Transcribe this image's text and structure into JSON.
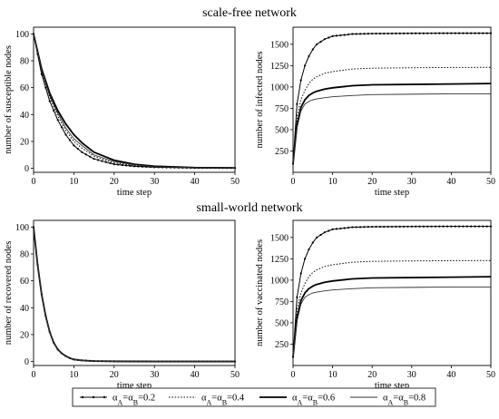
{
  "sections": {
    "top": "scale-free  network",
    "bottom": "small-world  network"
  },
  "legend": [
    {
      "label": "α",
      "sub1": "A",
      "mid": "=α",
      "sub2": "B",
      "tail": "=0.2",
      "style": "marker"
    },
    {
      "label": "α",
      "sub1": "A",
      "mid": "=α",
      "sub2": "B",
      "tail": "=0.4",
      "style": "dotted"
    },
    {
      "label": "α",
      "sub1": "A",
      "mid": "=α",
      "sub2": "B",
      "tail": "=0.6",
      "style": "thick"
    },
    {
      "label": "α",
      "sub1": "A",
      "mid": "=α",
      "sub2": "B",
      "tail": "=0.8",
      "style": "thin"
    }
  ],
  "chart_data": [
    {
      "type": "line",
      "title": "",
      "xlabel": "time step",
      "ylabel": "number of susceptible nodes",
      "xlim": [
        0,
        50
      ],
      "ylim": [
        -3,
        105
      ],
      "xticks": [
        "0",
        "10",
        "20",
        "30",
        "40",
        "50"
      ],
      "yticks": [
        "0",
        "20",
        "40",
        "60",
        "80",
        "100"
      ],
      "series": [
        {
          "name": "αA=αB=0.2",
          "x": [
            0,
            2,
            4,
            6,
            8,
            10,
            12,
            15,
            20,
            25,
            30,
            40,
            50
          ],
          "y": [
            100,
            70,
            50,
            36,
            25,
            17,
            12,
            7,
            3,
            1.5,
            0.8,
            0.3,
            0.2
          ]
        },
        {
          "name": "αA=αB=0.4",
          "x": [
            0,
            2,
            4,
            6,
            8,
            10,
            12,
            15,
            20,
            25,
            30,
            40,
            50
          ],
          "y": [
            100,
            72,
            53,
            39,
            28,
            20,
            15,
            9,
            4,
            2,
            1,
            0.4,
            0.3
          ]
        },
        {
          "name": "αA=αB=0.6",
          "x": [
            0,
            2,
            4,
            6,
            8,
            10,
            12,
            15,
            20,
            25,
            30,
            40,
            50
          ],
          "y": [
            100,
            74,
            56,
            43,
            33,
            25,
            19,
            12,
            6,
            3,
            1.5,
            0.5,
            0.3
          ]
        },
        {
          "name": "αA=αB=0.8",
          "x": [
            0,
            2,
            4,
            6,
            8,
            10,
            12,
            15,
            20,
            25,
            30,
            40,
            50
          ],
          "y": [
            100,
            73,
            54,
            41,
            30,
            22,
            17,
            10,
            5,
            2.5,
            1.2,
            0.5,
            0.3
          ]
        }
      ]
    },
    {
      "type": "line",
      "title": "",
      "xlabel": "time step",
      "ylabel": "number of infected nodes",
      "xlim": [
        0,
        50
      ],
      "ylim": [
        0,
        1700
      ],
      "xticks": [
        "0",
        "10",
        "20",
        "30",
        "40",
        "50"
      ],
      "yticks": [
        "250",
        "500",
        "750",
        "1000",
        "1250",
        "1500"
      ],
      "series": [
        {
          "name": "αA=αB=0.2",
          "x": [
            0,
            1,
            2,
            3,
            4,
            5,
            6,
            8,
            10,
            15,
            20,
            30,
            40,
            50
          ],
          "y": [
            100,
            800,
            1080,
            1250,
            1360,
            1440,
            1500,
            1560,
            1595,
            1620,
            1625,
            1628,
            1630,
            1630
          ]
        },
        {
          "name": "αA=αB=0.4",
          "x": [
            0,
            1,
            2,
            3,
            4,
            5,
            6,
            8,
            10,
            15,
            20,
            30,
            40,
            50
          ],
          "y": [
            100,
            650,
            850,
            960,
            1040,
            1090,
            1120,
            1160,
            1180,
            1210,
            1220,
            1225,
            1228,
            1230
          ]
        },
        {
          "name": "αA=αB=0.6",
          "x": [
            0,
            1,
            2,
            3,
            4,
            5,
            6,
            8,
            10,
            15,
            20,
            30,
            40,
            50
          ],
          "y": [
            100,
            560,
            760,
            850,
            900,
            930,
            950,
            975,
            990,
            1015,
            1025,
            1030,
            1035,
            1040
          ]
        },
        {
          "name": "αA=αB=0.8",
          "x": [
            0,
            1,
            2,
            3,
            4,
            5,
            6,
            8,
            10,
            15,
            20,
            30,
            40,
            50
          ],
          "y": [
            100,
            520,
            720,
            800,
            830,
            850,
            860,
            875,
            885,
            900,
            910,
            915,
            920,
            920
          ]
        }
      ]
    },
    {
      "type": "line",
      "title": "",
      "xlabel": "time step",
      "ylabel": "number of recovered nodes",
      "xlim": [
        0,
        50
      ],
      "ylim": [
        -3,
        105
      ],
      "xticks": [
        "0",
        "10",
        "20",
        "30",
        "40",
        "50"
      ],
      "yticks": [
        "0",
        "20",
        "40",
        "60",
        "80",
        "100"
      ],
      "series": [
        {
          "name": "αA=αB=0.2",
          "x": [
            0,
            1,
            2,
            3,
            4,
            5,
            6,
            7,
            8,
            9,
            10,
            12,
            15,
            20,
            30,
            50
          ],
          "y": [
            100,
            72,
            50,
            34,
            22,
            14,
            9,
            6,
            4,
            2.5,
            1.5,
            0.8,
            0.3,
            0.1,
            0,
            0
          ]
        },
        {
          "name": "αA=αB=0.4",
          "x": [
            0,
            1,
            2,
            3,
            4,
            5,
            6,
            7,
            8,
            9,
            10,
            12,
            15,
            20,
            30,
            50
          ],
          "y": [
            100,
            72,
            50,
            34,
            22,
            14,
            9,
            6,
            4,
            2.5,
            1.5,
            0.8,
            0.3,
            0.1,
            0,
            0
          ]
        },
        {
          "name": "αA=αB=0.6",
          "x": [
            0,
            1,
            2,
            3,
            4,
            5,
            6,
            7,
            8,
            9,
            10,
            12,
            15,
            20,
            30,
            50
          ],
          "y": [
            100,
            72,
            50,
            34,
            22,
            14,
            9,
            6,
            4,
            2.5,
            1.5,
            0.8,
            0.3,
            0.1,
            0,
            0
          ]
        },
        {
          "name": "αA=αB=0.8",
          "x": [
            0,
            1,
            2,
            3,
            4,
            5,
            6,
            7,
            8,
            9,
            10,
            12,
            15,
            20,
            30,
            50
          ],
          "y": [
            100,
            72,
            50,
            34,
            22,
            14,
            9,
            6,
            4,
            2.5,
            1.5,
            0.8,
            0.3,
            0.1,
            0,
            0
          ]
        }
      ]
    },
    {
      "type": "line",
      "title": "",
      "xlabel": "time step",
      "ylabel": "number of vaccinated nodes",
      "xlim": [
        0,
        50
      ],
      "ylim": [
        0,
        1700
      ],
      "xticks": [
        "0",
        "10",
        "20",
        "30",
        "40",
        "50"
      ],
      "yticks": [
        "250",
        "500",
        "750",
        "1000",
        "1250",
        "1500"
      ],
      "series": [
        {
          "name": "αA=αB=0.2",
          "x": [
            0,
            1,
            2,
            3,
            4,
            5,
            6,
            8,
            10,
            15,
            20,
            30,
            40,
            50
          ],
          "y": [
            100,
            800,
            1080,
            1250,
            1360,
            1440,
            1500,
            1560,
            1595,
            1620,
            1625,
            1628,
            1630,
            1630
          ]
        },
        {
          "name": "αA=αB=0.4",
          "x": [
            0,
            1,
            2,
            3,
            4,
            5,
            6,
            8,
            10,
            15,
            20,
            30,
            40,
            50
          ],
          "y": [
            100,
            650,
            850,
            960,
            1040,
            1090,
            1120,
            1160,
            1180,
            1210,
            1220,
            1225,
            1228,
            1230
          ]
        },
        {
          "name": "αA=αB=0.6",
          "x": [
            0,
            1,
            2,
            3,
            4,
            5,
            6,
            8,
            10,
            15,
            20,
            30,
            40,
            50
          ],
          "y": [
            100,
            560,
            760,
            850,
            900,
            930,
            950,
            975,
            990,
            1015,
            1025,
            1030,
            1035,
            1040
          ]
        },
        {
          "name": "αA=αB=0.8",
          "x": [
            0,
            1,
            2,
            3,
            4,
            5,
            6,
            8,
            10,
            15,
            20,
            30,
            40,
            50
          ],
          "y": [
            100,
            520,
            720,
            800,
            830,
            850,
            860,
            875,
            885,
            900,
            910,
            915,
            920,
            920
          ]
        }
      ]
    }
  ]
}
